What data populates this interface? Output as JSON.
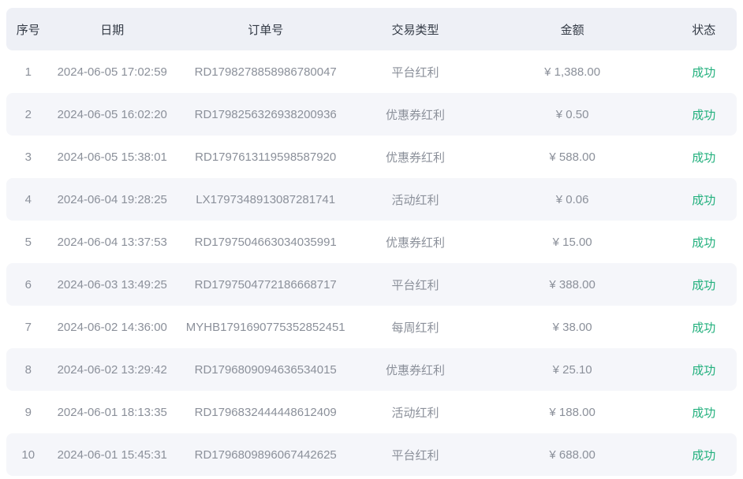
{
  "colors": {
    "header_bg": "#eef0f6",
    "stripe_bg": "#f5f6fa",
    "header_text": "#333a45",
    "body_text": "#8b909a",
    "success_green": "#22b07d"
  },
  "table": {
    "columns": [
      {
        "key": "index",
        "label": "序号"
      },
      {
        "key": "date",
        "label": "日期"
      },
      {
        "key": "order_no",
        "label": "订单号"
      },
      {
        "key": "type",
        "label": "交易类型"
      },
      {
        "key": "amount",
        "label": "金额"
      },
      {
        "key": "status",
        "label": "状态"
      }
    ],
    "rows": [
      {
        "index": "1",
        "date": "2024-06-05 17:02:59",
        "order_no": "RD1798278858986780047",
        "type": "平台红利",
        "amount": "¥ 1,388.00",
        "status": "成功"
      },
      {
        "index": "2",
        "date": "2024-06-05 16:02:20",
        "order_no": "RD1798256326938200936",
        "type": "优惠券红利",
        "amount": "¥ 0.50",
        "status": "成功"
      },
      {
        "index": "3",
        "date": "2024-06-05 15:38:01",
        "order_no": "RD1797613119598587920",
        "type": "优惠券红利",
        "amount": "¥ 588.00",
        "status": "成功"
      },
      {
        "index": "4",
        "date": "2024-06-04 19:28:25",
        "order_no": "LX1797348913087281741",
        "type": "活动红利",
        "amount": "¥ 0.06",
        "status": "成功"
      },
      {
        "index": "5",
        "date": "2024-06-04 13:37:53",
        "order_no": "RD1797504663034035991",
        "type": "优惠券红利",
        "amount": "¥ 15.00",
        "status": "成功"
      },
      {
        "index": "6",
        "date": "2024-06-03 13:49:25",
        "order_no": "RD1797504772186668717",
        "type": "平台红利",
        "amount": "¥ 388.00",
        "status": "成功"
      },
      {
        "index": "7",
        "date": "2024-06-02 14:36:00",
        "order_no": "MYHB1791690775352852451",
        "type": "每周红利",
        "amount": "¥ 38.00",
        "status": "成功"
      },
      {
        "index": "8",
        "date": "2024-06-02 13:29:42",
        "order_no": "RD1796809094636534015",
        "type": "优惠券红利",
        "amount": "¥ 25.10",
        "status": "成功"
      },
      {
        "index": "9",
        "date": "2024-06-01 18:13:35",
        "order_no": "RD1796832444448612409",
        "type": "活动红利",
        "amount": "¥ 188.00",
        "status": "成功"
      },
      {
        "index": "10",
        "date": "2024-06-01 15:45:31",
        "order_no": "RD1796809896067442625",
        "type": "平台红利",
        "amount": "¥ 688.00",
        "status": "成功"
      }
    ]
  }
}
